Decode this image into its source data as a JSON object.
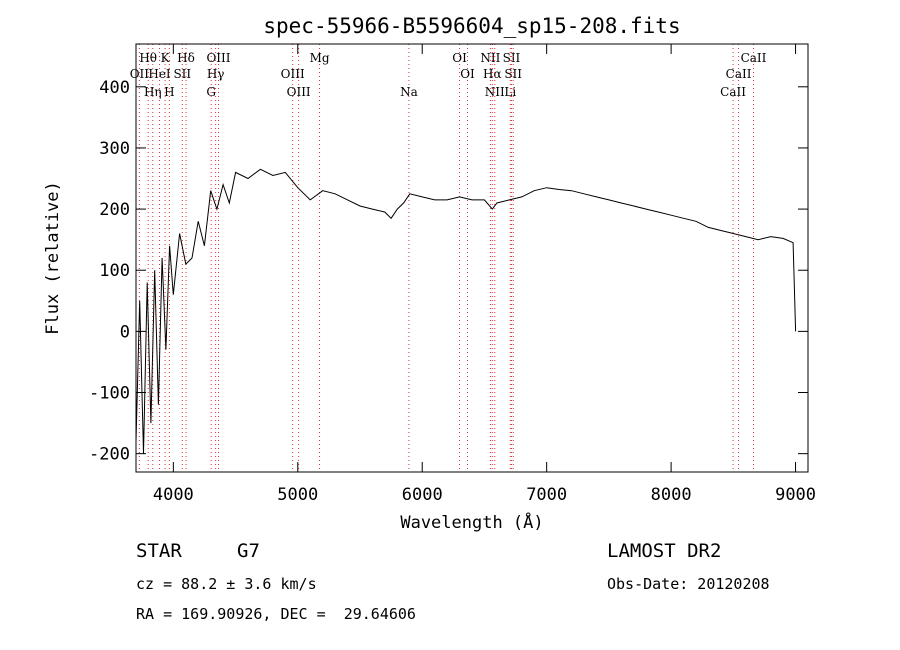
{
  "chart_data": {
    "type": "line",
    "title": "spec-55966-B5596604_sp15-208.fits",
    "xlabel": "Wavelength (Å)",
    "ylabel": "Flux (relative)",
    "xlim": [
      3700,
      9100
    ],
    "ylim": [
      -230,
      470
    ],
    "x_ticks": [
      4000,
      5000,
      6000,
      7000,
      8000,
      9000
    ],
    "y_ticks": [
      -200,
      -100,
      0,
      100,
      200,
      300,
      400
    ],
    "grid": false,
    "series": [
      {
        "x": [
          3700,
          3730,
          3760,
          3790,
          3820,
          3850,
          3880,
          3910,
          3940,
          3970,
          4000,
          4050,
          4100,
          4150,
          4200,
          4250,
          4300,
          4350,
          4400,
          4450,
          4500,
          4600,
          4700,
          4800,
          4900,
          5000,
          5100,
          5200,
          5300,
          5400,
          5500,
          5600,
          5700,
          5750,
          5800,
          5850,
          5900,
          6000,
          6100,
          6200,
          6300,
          6400,
          6500,
          6563,
          6600,
          6700,
          6800,
          6900,
          7000,
          7100,
          7200,
          7300,
          7400,
          7500,
          7600,
          7700,
          7800,
          7900,
          8000,
          8100,
          8200,
          8300,
          8400,
          8500,
          8600,
          8700,
          8800,
          8900,
          8980,
          9000
        ],
        "y": [
          -180,
          50,
          -200,
          80,
          -150,
          100,
          -120,
          120,
          -30,
          140,
          60,
          160,
          110,
          120,
          180,
          140,
          230,
          200,
          240,
          210,
          260,
          250,
          265,
          255,
          260,
          235,
          215,
          230,
          225,
          215,
          205,
          200,
          195,
          185,
          200,
          210,
          225,
          220,
          215,
          215,
          220,
          215,
          215,
          200,
          210,
          215,
          220,
          230,
          235,
          232,
          230,
          225,
          220,
          215,
          210,
          205,
          200,
          195,
          190,
          185,
          180,
          170,
          165,
          160,
          155,
          150,
          155,
          152,
          145,
          0
        ]
      }
    ],
    "line_markers": {
      "upper": [
        {
          "label": "Hθ",
          "wl": 3798
        },
        {
          "label": "K",
          "wl": 3934
        },
        {
          "label": "Hδ",
          "wl": 4102
        },
        {
          "label": "OIII",
          "wl": 4363
        },
        {
          "label": "Mg",
          "wl": 5175
        },
        {
          "label": "OI",
          "wl": 6300
        },
        {
          "label": "NII",
          "wl": 6548
        },
        {
          "label": "SII",
          "wl": 6717
        },
        {
          "label": "CaII",
          "wl": 8662
        }
      ],
      "middle": [
        {
          "label": "OII",
          "wl": 3727
        },
        {
          "label": "HeI",
          "wl": 3889
        },
        {
          "label": "SII",
          "wl": 4072
        },
        {
          "label": "Hγ",
          "wl": 4340
        },
        {
          "label": "OIII",
          "wl": 4959
        },
        {
          "label": "OI",
          "wl": 6364
        },
        {
          "label": "Hα",
          "wl": 6563
        },
        {
          "label": "SII",
          "wl": 6731
        },
        {
          "label": "CaII",
          "wl": 8542
        }
      ],
      "lower": [
        {
          "label": "Hη",
          "wl": 3835
        },
        {
          "label": "H",
          "wl": 3968
        },
        {
          "label": "G",
          "wl": 4304
        },
        {
          "label": "OIII",
          "wl": 5007
        },
        {
          "label": "Na",
          "wl": 5893
        },
        {
          "label": "NII",
          "wl": 6583
        },
        {
          "label": "Li",
          "wl": 6708
        },
        {
          "label": "CaII",
          "wl": 8498
        }
      ]
    },
    "colors": {
      "marker_line": "#e03030",
      "spectrum": "#000000"
    }
  },
  "info": {
    "class_label": "STAR",
    "subclass_label": "G7",
    "survey": "LAMOST DR2",
    "cz": "cz = 88.2 ± 3.6 km/s",
    "obs_date": "Obs-Date: 20120208",
    "coords": "RA = 169.90926, DEC =  29.64606"
  }
}
